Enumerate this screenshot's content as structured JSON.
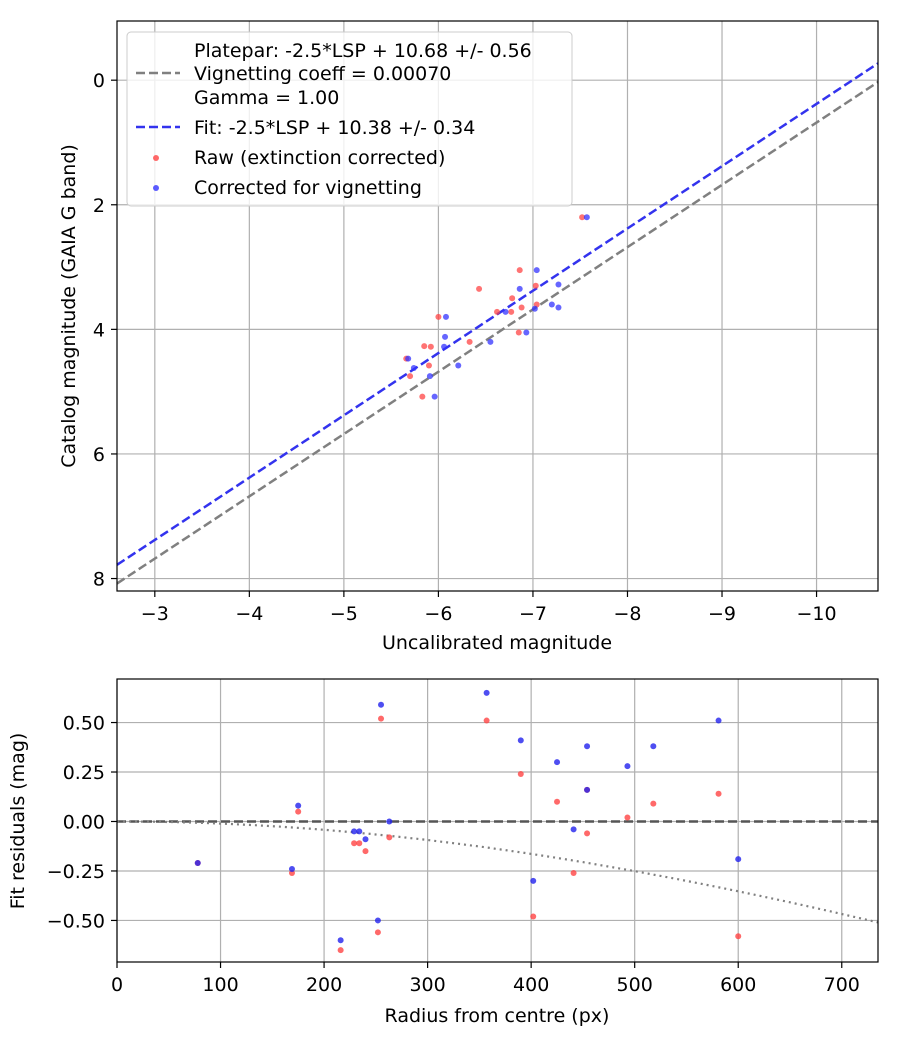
{
  "chart_data": [
    {
      "type": "scatter",
      "xlabel": "Uncalibrated magnitude",
      "ylabel": "Catalog magnitude (GAIA G band)",
      "xlim": [
        -2.6,
        -10.65
      ],
      "ylim": [
        8.2,
        -0.95
      ],
      "x_inverted": true,
      "y_inverted": true,
      "xticks": [
        -3,
        -4,
        -5,
        -6,
        -7,
        -8,
        -9,
        -10
      ],
      "xtick_labels": [
        "−3",
        "−4",
        "−5",
        "−6",
        "−7",
        "−8",
        "−9",
        "−10"
      ],
      "yticks": [
        0,
        2,
        4,
        6,
        8
      ],
      "ytick_labels": [
        "0",
        "2",
        "4",
        "6",
        "8"
      ],
      "grid": true,
      "legend_position": "upper-left",
      "legend": {
        "platepar_line1": "Platepar: -2.5*LSP + 10.68 +/- 0.56",
        "platepar_line2": "Vignetting coeff = 0.00070",
        "platepar_line3": "Gamma = 1.00",
        "fit": "Fit: -2.5*LSP + 10.38 +/- 0.34",
        "raw": "Raw (extinction corrected)",
        "corrected": "Corrected for vignetting"
      },
      "lines": [
        {
          "name": "Platepar",
          "style": "dashed",
          "color": "#808080",
          "offset": 10.68,
          "slope": 1
        },
        {
          "name": "Fit",
          "style": "dashed",
          "color": "#3333ee",
          "offset": 10.38,
          "slope": 1
        }
      ],
      "series": [
        {
          "name": "Raw (extinction corrected)",
          "color": "#ff4444",
          "points": [
            [
              -7.52,
              2.2
            ],
            [
              -6.86,
              3.05
            ],
            [
              -6.43,
              3.35
            ],
            [
              -6.78,
              3.5
            ],
            [
              -7.03,
              3.3
            ],
            [
              -7.04,
              3.6
            ],
            [
              -6.62,
              3.72
            ],
            [
              -6.77,
              3.72
            ],
            [
              -6.88,
              3.65
            ],
            [
              -6.85,
              4.05
            ],
            [
              -6.0,
              3.8
            ],
            [
              -6.33,
              4.2
            ],
            [
              -5.92,
              4.28
            ],
            [
              -5.85,
              4.27
            ],
            [
              -5.66,
              4.47
            ],
            [
              -5.7,
              4.75
            ],
            [
              -5.9,
              4.58
            ],
            [
              -5.83,
              5.08
            ]
          ]
        },
        {
          "name": "Corrected for vignetting",
          "color": "#3333ff",
          "points": [
            [
              -7.57,
              2.2
            ],
            [
              -7.04,
              3.05
            ],
            [
              -7.27,
              3.28
            ],
            [
              -6.86,
              3.35
            ],
            [
              -7.2,
              3.6
            ],
            [
              -7.27,
              3.65
            ],
            [
              -7.02,
              3.67
            ],
            [
              -6.71,
              3.72
            ],
            [
              -6.08,
              3.8
            ],
            [
              -6.07,
              4.12
            ],
            [
              -6.93,
              4.05
            ],
            [
              -6.55,
              4.2
            ],
            [
              -6.06,
              4.28
            ],
            [
              -5.68,
              4.47
            ],
            [
              -6.21,
              4.58
            ],
            [
              -5.74,
              4.62
            ],
            [
              -5.91,
              4.75
            ],
            [
              -5.96,
              5.08
            ]
          ]
        }
      ]
    },
    {
      "type": "scatter",
      "xlabel": "Radius from centre (px)",
      "ylabel": "Fit residuals (mag)",
      "xlim": [
        0,
        735
      ],
      "ylim": [
        -0.71,
        0.72
      ],
      "xticks": [
        0,
        100,
        200,
        300,
        400,
        500,
        600,
        700
      ],
      "xtick_labels": [
        "0",
        "100",
        "200",
        "300",
        "400",
        "500",
        "600",
        "700"
      ],
      "yticks": [
        -0.5,
        -0.25,
        0.0,
        0.25,
        0.5
      ],
      "ytick_labels": [
        "−0.50",
        "−0.25",
        "0.00",
        "0.25",
        "0.50"
      ],
      "grid": true,
      "lines": [
        {
          "name": "zero",
          "style": "dashed",
          "color": "#555555",
          "y": 0
        },
        {
          "name": "vignetting model",
          "style": "dotted",
          "color": "#808080",
          "coeff": 0.0007
        }
      ],
      "series": [
        {
          "name": "Raw (extinction corrected)",
          "color": "#ff4444",
          "points": [
            [
              78,
              -0.21
            ],
            [
              169,
              -0.26
            ],
            [
              175,
              0.05
            ],
            [
              216,
              -0.65
            ],
            [
              229,
              -0.11
            ],
            [
              234,
              -0.11
            ],
            [
              240,
              -0.15
            ],
            [
              252,
              -0.56
            ],
            [
              255,
              0.52
            ],
            [
              263,
              -0.08
            ],
            [
              357,
              0.51
            ],
            [
              390,
              0.24
            ],
            [
              402,
              -0.48
            ],
            [
              425,
              0.1
            ],
            [
              441,
              -0.26
            ],
            [
              454,
              -0.06
            ],
            [
              454,
              0.16
            ],
            [
              493,
              0.02
            ],
            [
              518,
              0.09
            ],
            [
              581,
              0.14
            ],
            [
              600,
              -0.58
            ]
          ]
        },
        {
          "name": "Corrected for vignetting",
          "color": "#2222ee",
          "points": [
            [
              78,
              -0.21
            ],
            [
              169,
              -0.24
            ],
            [
              175,
              0.08
            ],
            [
              216,
              -0.6
            ],
            [
              229,
              -0.05
            ],
            [
              234,
              -0.05
            ],
            [
              240,
              -0.09
            ],
            [
              252,
              -0.5
            ],
            [
              255,
              0.59
            ],
            [
              263,
              0.0
            ],
            [
              357,
              0.65
            ],
            [
              390,
              0.41
            ],
            [
              402,
              -0.3
            ],
            [
              425,
              0.3
            ],
            [
              441,
              -0.04
            ],
            [
              454,
              0.38
            ],
            [
              454,
              0.16
            ],
            [
              493,
              0.28
            ],
            [
              518,
              0.38
            ],
            [
              581,
              0.51
            ],
            [
              600,
              -0.19
            ]
          ]
        }
      ]
    }
  ]
}
